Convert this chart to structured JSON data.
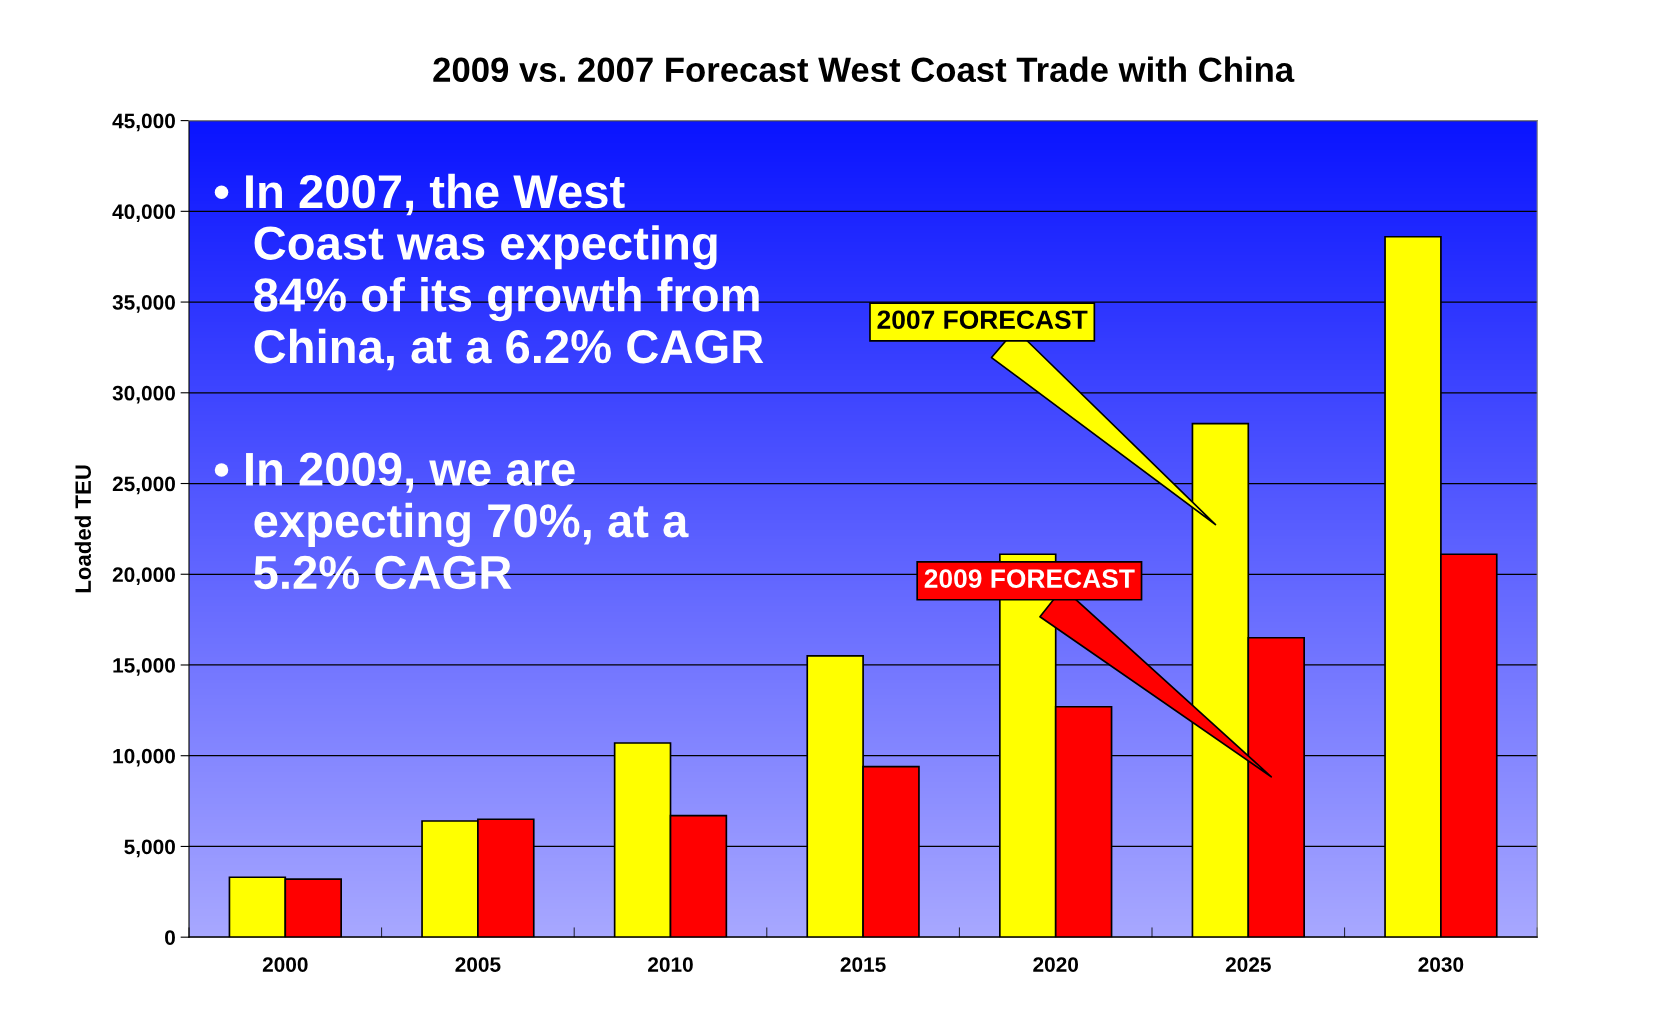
{
  "chart_data": {
    "type": "bar",
    "title": "2009 vs. 2007 Forecast West Coast Trade with China",
    "ylabel": "Loaded TEU",
    "categories": [
      "2000",
      "2005",
      "2010",
      "2015",
      "2020",
      "2025",
      "2030"
    ],
    "series": [
      {
        "name": "2007 FORECAST",
        "color": "#ffff00",
        "values": [
          3300,
          6400,
          10700,
          15500,
          21100,
          28300,
          38600
        ]
      },
      {
        "name": "2009 FORECAST",
        "color": "#ff0000",
        "values": [
          3200,
          6500,
          6700,
          9400,
          12700,
          16500,
          21100
        ]
      }
    ],
    "ylim": [
      0,
      45000
    ],
    "yticks": [
      {
        "value": 0,
        "label": "0"
      },
      {
        "value": 5000,
        "label": "5,000"
      },
      {
        "value": 10000,
        "label": "10,000"
      },
      {
        "value": 15000,
        "label": "15,000"
      },
      {
        "value": 20000,
        "label": "20,000"
      },
      {
        "value": 25000,
        "label": "25,000"
      },
      {
        "value": 30000,
        "label": "30,000"
      },
      {
        "value": 35000,
        "label": "35,000"
      },
      {
        "value": 40000,
        "label": "40,000"
      },
      {
        "value": 45000,
        "label": "45,000"
      }
    ],
    "grid": "y",
    "legend": false,
    "annotations": [
      "• In 2007, the West\n   Coast was expecting\n   84% of its growth from\n   China, at a 6.2% CAGR",
      "• In 2009, we are\n   expecting 70%, at a\n   5.2% CAGR"
    ]
  }
}
